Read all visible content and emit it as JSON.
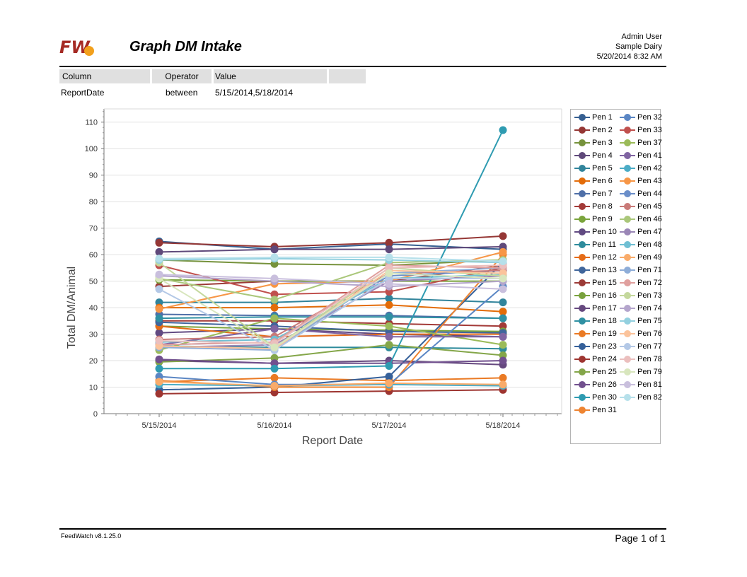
{
  "header": {
    "logo_text": "FW",
    "title": "Graph DM Intake",
    "user": "Admin User",
    "dairy": "Sample Dairy",
    "datetime": "5/20/2014 8:32 AM"
  },
  "filter": {
    "columns": [
      "Column",
      "Operator",
      "Value",
      ""
    ],
    "rows": [
      [
        "ReportDate",
        "between",
        "5/15/2014,5/18/2014"
      ]
    ]
  },
  "chart_data": {
    "type": "line",
    "xlabel": "Report Date",
    "ylabel": "Total DM/Animal",
    "categories": [
      "5/15/2014",
      "5/16/2014",
      "5/17/2014",
      "5/18/2014"
    ],
    "ylim": [
      0,
      115
    ],
    "yticks": [
      0,
      10,
      20,
      30,
      40,
      50,
      60,
      70,
      80,
      90,
      100,
      110
    ],
    "grid": "horizontal",
    "legend_position": "right",
    "series": [
      {
        "name": "Pen 1",
        "color": "#365f91",
        "values": [
          65,
          62,
          64,
          62
        ]
      },
      {
        "name": "Pen 2",
        "color": "#953735",
        "values": [
          64.5,
          63,
          64.5,
          67
        ]
      },
      {
        "name": "Pen 3",
        "color": "#76923c",
        "values": [
          58,
          56.5,
          56,
          58
        ]
      },
      {
        "name": "Pen 4",
        "color": "#5f497a",
        "values": [
          61,
          62,
          62,
          63
        ]
      },
      {
        "name": "Pen 5",
        "color": "#31849b",
        "values": [
          42,
          42,
          43.5,
          42
        ]
      },
      {
        "name": "Pen 6",
        "color": "#e36c09",
        "values": [
          40,
          40,
          41,
          38.5
        ]
      },
      {
        "name": "Pen 7",
        "color": "#4f6fa8",
        "values": [
          37.5,
          37,
          37,
          36
        ]
      },
      {
        "name": "Pen 8",
        "color": "#a33a38",
        "values": [
          35,
          35,
          34,
          33
        ]
      },
      {
        "name": "Pen 9",
        "color": "#7aa43c",
        "values": [
          33,
          32,
          31.5,
          31
        ]
      },
      {
        "name": "Pen 10",
        "color": "#614a82",
        "values": [
          30.5,
          32,
          30,
          29
        ]
      },
      {
        "name": "Pen 11",
        "color": "#2e8b9c",
        "values": [
          25.5,
          25,
          25,
          24.5
        ]
      },
      {
        "name": "Pen 12",
        "color": "#e56c18",
        "values": [
          33,
          29,
          30,
          30
        ]
      },
      {
        "name": "Pen 13",
        "color": "#40669c",
        "values": [
          34.5,
          33,
          31,
          30.5
        ]
      },
      {
        "name": "Pen 15",
        "color": "#9c3b37",
        "values": [
          48,
          50,
          50,
          56
        ]
      },
      {
        "name": "Pen 16",
        "color": "#79a13d",
        "values": [
          50.5,
          50,
          50,
          50
        ]
      },
      {
        "name": "Pen 17",
        "color": "#66497f",
        "values": [
          20,
          19,
          20,
          18.5
        ]
      },
      {
        "name": "Pen 18",
        "color": "#2f90a3",
        "values": [
          36,
          36.5,
          36.5,
          36
        ]
      },
      {
        "name": "Pen 19",
        "color": "#ea7a24",
        "values": [
          12,
          13.5,
          12.5,
          13.5
        ]
      },
      {
        "name": "Pen 23",
        "color": "#35609a",
        "values": [
          9,
          10,
          14,
          57
        ]
      },
      {
        "name": "Pen 24",
        "color": "#9e3531",
        "values": [
          7.5,
          8,
          8.5,
          9
        ]
      },
      {
        "name": "Pen 25",
        "color": "#84a649",
        "values": [
          19.5,
          21,
          26,
          22
        ]
      },
      {
        "name": "Pen 26",
        "color": "#71508e",
        "values": [
          20.5,
          19,
          19,
          20
        ]
      },
      {
        "name": "Pen 30",
        "color": "#2e9bb1",
        "values": [
          17,
          17,
          18,
          107
        ]
      },
      {
        "name": "Pen 31",
        "color": "#ee8431",
        "values": [
          12.5,
          10,
          10,
          60
        ]
      },
      {
        "name": "Pen 32",
        "color": "#5a86c4",
        "values": [
          14,
          11,
          11,
          48
        ]
      },
      {
        "name": "Pen 33",
        "color": "#c0504d",
        "values": [
          56,
          45,
          46,
          55
        ]
      },
      {
        "name": "Pen 37",
        "color": "#9bbb59",
        "values": [
          24,
          36,
          33,
          26
        ]
      },
      {
        "name": "Pen 41",
        "color": "#8064a2",
        "values": [
          26,
          32,
          29,
          29
        ]
      },
      {
        "name": "Pen 42",
        "color": "#4bacc6",
        "values": [
          11,
          10.5,
          11,
          10.5
        ]
      },
      {
        "name": "Pen 43",
        "color": "#f79646",
        "values": [
          39.5,
          49,
          50,
          61
        ]
      },
      {
        "name": "Pen 44",
        "color": "#6a8ec9",
        "values": [
          26,
          27,
          52,
          54
        ]
      },
      {
        "name": "Pen 45",
        "color": "#c97a78",
        "values": [
          28,
          29,
          53,
          54
        ]
      },
      {
        "name": "Pen 46",
        "color": "#aac77a",
        "values": [
          51,
          43,
          57,
          58
        ]
      },
      {
        "name": "Pen 47",
        "color": "#9a86b6",
        "values": [
          25,
          26,
          50,
          52
        ]
      },
      {
        "name": "Pen 48",
        "color": "#6fbfd3",
        "values": [
          27,
          28,
          51,
          52.5
        ]
      },
      {
        "name": "Pen 49",
        "color": "#f9ab6a",
        "values": [
          12,
          10.5,
          11.5,
          11
        ]
      },
      {
        "name": "Pen 71",
        "color": "#8eadd8",
        "values": [
          25,
          24,
          53,
          55
        ]
      },
      {
        "name": "Pen 72",
        "color": "#e0a09e",
        "values": [
          26,
          27,
          56,
          55
        ]
      },
      {
        "name": "Pen 73",
        "color": "#c4d89c",
        "values": [
          57,
          25,
          55,
          52
        ]
      },
      {
        "name": "Pen 74",
        "color": "#b4a5cc",
        "values": [
          52,
          50,
          48,
          50
        ]
      },
      {
        "name": "Pen 75",
        "color": "#93d0df",
        "values": [
          58,
          58.5,
          58,
          57
        ]
      },
      {
        "name": "Pen 76",
        "color": "#fbc39b",
        "values": [
          25.5,
          24.5,
          54,
          53
        ]
      },
      {
        "name": "Pen 77",
        "color": "#b3c8e6",
        "values": [
          47,
          24,
          51,
          51
        ]
      },
      {
        "name": "Pen 78",
        "color": "#ebbfbe",
        "values": [
          27.5,
          26.5,
          55,
          56
        ]
      },
      {
        "name": "Pen 79",
        "color": "#d8e6bd",
        "values": [
          51,
          25,
          53,
          51
        ]
      },
      {
        "name": "Pen 81",
        "color": "#c9bfdd",
        "values": [
          52.5,
          51,
          49,
          47
        ]
      },
      {
        "name": "Pen 82",
        "color": "#b6e0ea",
        "values": [
          58.5,
          59,
          59,
          57.5
        ]
      }
    ]
  },
  "footer": {
    "version": "FeedWatch v8.1.25.0",
    "page": "Page 1 of 1"
  }
}
